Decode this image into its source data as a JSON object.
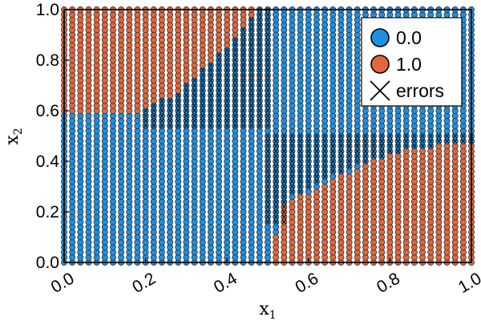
{
  "chart_data": {
    "type": "scatter",
    "title": "",
    "xlabel": "x",
    "xlabel_sub": "1",
    "ylabel": "x",
    "ylabel_sub": "2",
    "xlim": [
      0.0,
      1.0
    ],
    "ylim": [
      0.0,
      1.0
    ],
    "grid": false,
    "grid_points": {
      "x_count": 51,
      "y_count": 51,
      "step": 0.02
    },
    "x_ticks": [
      {
        "value": 0.0,
        "label": "0.0"
      },
      {
        "value": 0.2,
        "label": "0.2"
      },
      {
        "value": 0.4,
        "label": "0.4"
      },
      {
        "value": 0.6,
        "label": "0.6"
      },
      {
        "value": 0.8,
        "label": "0.8"
      },
      {
        "value": 1.0,
        "label": "1.0"
      }
    ],
    "y_ticks": [
      {
        "value": 0.0,
        "label": "0.0"
      },
      {
        "value": 0.2,
        "label": "0.2"
      },
      {
        "value": 0.4,
        "label": "0.4"
      },
      {
        "value": 0.6,
        "label": "0.6"
      },
      {
        "value": 0.8,
        "label": "0.8"
      },
      {
        "value": 1.0,
        "label": "1.0"
      }
    ],
    "series": [
      {
        "name": "0.0",
        "color": "#1f8fe0",
        "marker": "circle",
        "region": "all points not in class 1.0"
      },
      {
        "name": "1.0",
        "color": "#e0673e",
        "marker": "circle",
        "region": "upper-left (x1 < 0.5, above upper boundary) and lower-right (x1 > 0.5, below lower boundary)"
      },
      {
        "name": "errors",
        "color": "#000000",
        "marker": "x"
      }
    ],
    "class_1_regions": {
      "left_upper_boundary": [
        [
          0.0,
          0.58
        ],
        [
          0.2,
          0.6
        ],
        [
          0.3,
          0.7
        ],
        [
          0.4,
          0.85
        ],
        [
          0.47,
          1.0
        ],
        [
          0.5,
          1.0
        ]
      ],
      "right_lower_boundary": [
        [
          0.5,
          0.0
        ],
        [
          0.54,
          0.23
        ],
        [
          0.6,
          0.28
        ],
        [
          0.7,
          0.36
        ],
        [
          0.8,
          0.43
        ],
        [
          0.9,
          0.46
        ],
        [
          1.0,
          0.48
        ]
      ]
    },
    "error_regions": {
      "left_band": {
        "x_range": [
          0.0,
          0.5
        ],
        "y_start": 0.53,
        "y_end_at_x05": 1.0
      },
      "right_band": {
        "x_range": [
          0.5,
          1.0
        ],
        "y_top": 0.5,
        "y_bottom_at_x05": 0.15
      }
    },
    "legend": {
      "placement": "top-right",
      "entries": [
        "0.0",
        "1.0",
        "errors"
      ]
    },
    "colors": {
      "class_0": "#1f8fe0",
      "class_1": "#e0673e",
      "marker_edge": "#222222"
    }
  }
}
